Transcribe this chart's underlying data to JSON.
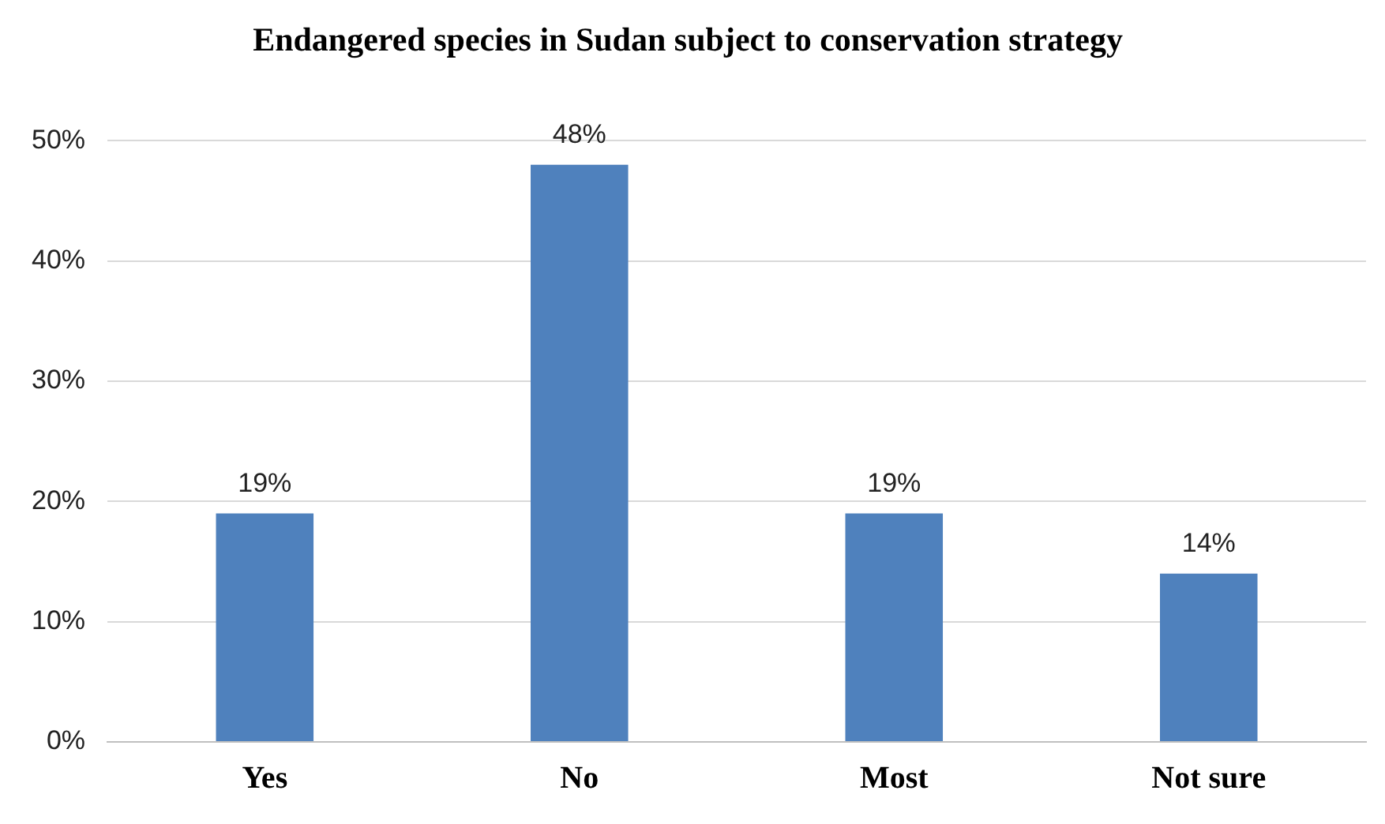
{
  "chart_data": {
    "type": "bar",
    "title": "Endangered species in Sudan subject to conservation strategy",
    "categories": [
      "Yes",
      "No",
      "Most",
      "Not sure"
    ],
    "values": [
      19,
      48,
      19,
      14
    ],
    "value_labels": [
      "19%",
      "48%",
      "19%",
      "14%"
    ],
    "color": "#4f81bd",
    "ylim": [
      0,
      50
    ],
    "yticks": [
      {
        "value": 0,
        "label": "0%"
      },
      {
        "value": 10,
        "label": "10%"
      },
      {
        "value": 20,
        "label": "20%"
      },
      {
        "value": 30,
        "label": "30%"
      },
      {
        "value": 40,
        "label": "40%"
      },
      {
        "value": 50,
        "label": "50%"
      }
    ],
    "grid": "y"
  }
}
